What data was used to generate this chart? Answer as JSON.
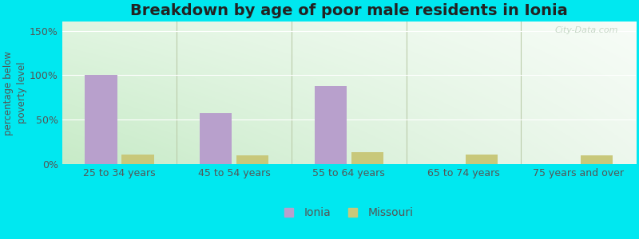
{
  "title": "Breakdown by age of poor male residents in Ionia",
  "ylabel": "percentage below\npoverty level",
  "categories": [
    "25 to 34 years",
    "45 to 54 years",
    "55 to 64 years",
    "65 to 74 years",
    "75 years and over"
  ],
  "ionia_values": [
    100,
    57,
    88,
    0,
    0
  ],
  "missouri_values": [
    11,
    10,
    13,
    11,
    10
  ],
  "ionia_color": "#b8a0cc",
  "missouri_color": "#c8c87a",
  "background_outer": "#00e8f0",
  "yticks": [
    0,
    50,
    100,
    150
  ],
  "ytick_labels": [
    "0%",
    "50%",
    "100%",
    "150%"
  ],
  "ylim": [
    0,
    160
  ],
  "bar_width": 0.28,
  "legend_labels": [
    "Ionia",
    "Missouri"
  ],
  "title_fontsize": 14,
  "axis_label_fontsize": 8.5,
  "tick_fontsize": 9,
  "legend_fontsize": 10,
  "grad_topleft": [
    0.88,
    0.96,
    0.88
  ],
  "grad_topright": [
    0.97,
    0.99,
    0.97
  ],
  "grad_bottomleft": [
    0.78,
    0.92,
    0.78
  ],
  "grad_bottomright": [
    0.93,
    0.97,
    0.93
  ],
  "grid_color": "#ffffff",
  "separator_color": "#bbccaa",
  "watermark_color": "#c8d8c8",
  "text_color": "#555555"
}
